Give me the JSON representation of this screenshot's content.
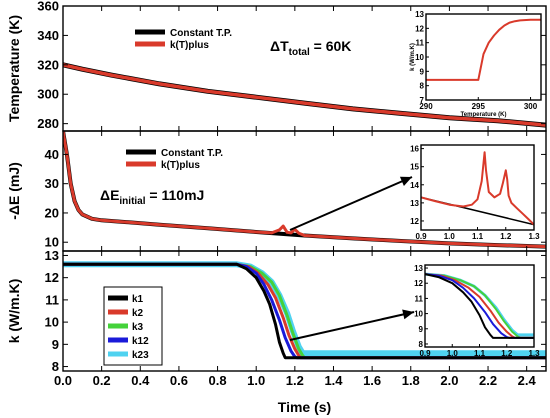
{
  "chart_data": [
    {
      "type": "line",
      "ylabel": "Temperature (K)",
      "xlim": [
        0,
        2.5
      ],
      "ylim": [
        275,
        360
      ],
      "yticks": [
        280,
        300,
        320,
        340,
        360
      ],
      "annotation": {
        "prefix": "ΔT",
        "subscript": "total",
        "suffix": " = 60K"
      },
      "legend": {
        "position": "top-left",
        "entries": [
          "Constant T.P.",
          "k(T)plus"
        ]
      },
      "series": [
        {
          "name": "Constant T.P.",
          "color": "#000000",
          "x": [
            0,
            0.1,
            0.25,
            0.5,
            0.75,
            1.0,
            1.25,
            1.5,
            1.75,
            2.0,
            2.25,
            2.5
          ],
          "y": [
            320,
            317,
            313,
            307,
            302,
            298,
            294,
            290,
            287,
            284,
            282,
            279
          ]
        },
        {
          "name": "k(T)plus",
          "color": "#d93a2b",
          "x": [
            0,
            0.1,
            0.25,
            0.5,
            0.75,
            1.0,
            1.25,
            1.5,
            1.75,
            2.0,
            2.25,
            2.5
          ],
          "y": [
            320,
            317,
            313,
            307,
            302,
            298,
            294,
            290,
            287,
            284,
            282,
            279
          ]
        }
      ],
      "inset": {
        "xlabel": "Temperature (K)",
        "ylabel": "k (W/m.K)",
        "xlim": [
          290,
          301
        ],
        "ylim": [
          7,
          13
        ],
        "xticks": [
          290,
          295,
          300
        ],
        "yticks": [
          7,
          8,
          9,
          10,
          11,
          12,
          13
        ],
        "series": [
          {
            "name": "k(T)plus",
            "color": "#d93a2b",
            "x": [
              290,
              294.9,
              295.0,
              295.5,
              296,
              296.5,
              297,
              297.5,
              298,
              298.5,
              299,
              300,
              301
            ],
            "y": [
              8.4,
              8.4,
              8.4,
              10.2,
              11.0,
              11.5,
              11.9,
              12.2,
              12.4,
              12.5,
              12.55,
              12.6,
              12.6
            ]
          }
        ]
      }
    },
    {
      "type": "line",
      "ylabel": "-ΔE (mJ)",
      "xlim": [
        0,
        2.5
      ],
      "ylim": [
        7,
        48
      ],
      "yticks": [
        10,
        20,
        30,
        40
      ],
      "annotation": {
        "prefix": "ΔE",
        "subscript": "initial",
        "suffix": " = 110mJ"
      },
      "legend": {
        "position": "top-center",
        "entries": [
          "Constant T.P.",
          "k(T)plus"
        ]
      },
      "series": [
        {
          "name": "Constant T.P.",
          "color": "#000000",
          "x": [
            0,
            0.02,
            0.04,
            0.06,
            0.08,
            0.1,
            0.15,
            0.2,
            0.3,
            0.5,
            0.75,
            1.0,
            1.25,
            1.5,
            1.75,
            2.0,
            2.25,
            2.5
          ],
          "y": [
            48,
            40,
            30,
            24,
            21,
            19.5,
            18,
            17.5,
            17,
            16,
            14.8,
            13.5,
            12.3,
            11.3,
            10.4,
            9.6,
            9.0,
            8.5
          ]
        },
        {
          "name": "k(T)plus",
          "color": "#d93a2b",
          "x": [
            0,
            0.02,
            0.04,
            0.06,
            0.08,
            0.1,
            0.15,
            0.2,
            0.3,
            0.5,
            0.75,
            1.0,
            1.08,
            1.12,
            1.14,
            1.16,
            1.18,
            1.2,
            1.22,
            1.25,
            1.5,
            1.75,
            2.0,
            2.25,
            2.5
          ],
          "y": [
            48,
            40,
            30,
            24,
            21,
            19.5,
            18,
            17.5,
            17,
            16,
            14.8,
            13.5,
            13.2,
            14.2,
            15.5,
            13.4,
            13.2,
            14.4,
            13.1,
            12.3,
            11.3,
            10.4,
            9.6,
            9.0,
            8.5
          ]
        }
      ],
      "inset": {
        "xlim": [
          0.9,
          1.3
        ],
        "ylim": [
          11.5,
          16.2
        ],
        "xticks": [
          0.9,
          1.0,
          1.1,
          1.2,
          1.3
        ],
        "yticks": [
          12,
          13,
          14,
          15,
          16
        ],
        "series": [
          {
            "name": "Constant T.P.",
            "color": "#000000",
            "x": [
              0.9,
              1.3
            ],
            "y": [
              13.3,
              11.8
            ]
          },
          {
            "name": "k(T)plus",
            "color": "#d93a2b",
            "x": [
              0.9,
              0.95,
              1.0,
              1.05,
              1.08,
              1.1,
              1.115,
              1.125,
              1.13,
              1.14,
              1.16,
              1.18,
              1.19,
              1.2,
              1.205,
              1.21,
              1.22,
              1.24,
              1.26,
              1.28,
              1.3
            ],
            "y": [
              13.3,
              13.1,
              12.9,
              12.8,
              12.9,
              13.2,
              14.2,
              15.8,
              14.8,
              13.6,
              13.3,
              13.5,
              14.1,
              14.8,
              14.3,
              13.4,
              13.0,
              12.7,
              12.4,
              12.1,
              11.8
            ]
          }
        ]
      }
    },
    {
      "type": "line",
      "xlabel": "Time (s)",
      "ylabel": "k (W/m.K)",
      "xlim": [
        0,
        2.5
      ],
      "ylim": [
        7.8,
        13.2
      ],
      "xticks": [
        0.0,
        0.2,
        0.4,
        0.6,
        0.8,
        1.0,
        1.2,
        1.4,
        1.6,
        1.8,
        2.0,
        2.2,
        2.4
      ],
      "yticks": [
        8,
        9,
        10,
        11,
        12,
        13
      ],
      "legend": {
        "position": "left",
        "entries": [
          "k1",
          "k2",
          "k3",
          "k12",
          "k23"
        ]
      },
      "series": [
        {
          "name": "k23",
          "color": "#4fd2f0",
          "x": [
            0,
            0.9,
            0.97,
            1.03,
            1.08,
            1.12,
            1.16,
            1.19,
            1.22,
            1.24,
            1.245,
            2.5
          ],
          "y": [
            12.6,
            12.6,
            12.5,
            12.2,
            11.8,
            11.2,
            10.4,
            9.6,
            8.9,
            8.6,
            8.6,
            8.6
          ]
        },
        {
          "name": "k3",
          "color": "#44d23a",
          "x": [
            0,
            0.9,
            0.97,
            1.03,
            1.08,
            1.12,
            1.16,
            1.19,
            1.22,
            1.24,
            1.25,
            2.5
          ],
          "y": [
            12.6,
            12.6,
            12.5,
            12.2,
            11.8,
            11.2,
            10.3,
            9.5,
            8.8,
            8.5,
            8.4,
            8.4
          ]
        },
        {
          "name": "k2",
          "color": "#d93a2b",
          "x": [
            0,
            0.9,
            0.96,
            1.01,
            1.06,
            1.1,
            1.14,
            1.17,
            1.2,
            1.22,
            1.23,
            2.5
          ],
          "y": [
            12.6,
            12.6,
            12.5,
            12.2,
            11.7,
            11.1,
            10.2,
            9.4,
            8.8,
            8.5,
            8.4,
            8.4
          ]
        },
        {
          "name": "k12",
          "color": "#1a1ad9",
          "x": [
            0,
            0.9,
            0.95,
            1.0,
            1.04,
            1.08,
            1.12,
            1.15,
            1.18,
            1.2,
            1.21,
            2.5
          ],
          "y": [
            12.6,
            12.6,
            12.5,
            12.2,
            11.7,
            11.0,
            10.1,
            9.3,
            8.7,
            8.45,
            8.4,
            8.4
          ]
        },
        {
          "name": "k1",
          "color": "#000000",
          "x": [
            0,
            0.9,
            0.95,
            1.0,
            1.04,
            1.07,
            1.1,
            1.12,
            1.14,
            1.15,
            1.16,
            1.2,
            2.5
          ],
          "y": [
            12.6,
            12.6,
            12.4,
            12.0,
            11.4,
            10.8,
            9.9,
            9.1,
            8.6,
            8.4,
            8.4,
            8.4,
            8.4
          ]
        }
      ],
      "inset": {
        "xlim": [
          0.9,
          1.3
        ],
        "ylim": [
          7.8,
          13.2
        ],
        "xticks": [
          0.9,
          1.0,
          1.1,
          1.2,
          1.3
        ],
        "yticks": [
          8,
          9,
          10,
          11,
          12,
          13
        ],
        "series": [
          {
            "name": "k23",
            "color": "#4fd2f0",
            "x": [
              0.9,
              0.97,
              1.03,
              1.08,
              1.12,
              1.16,
              1.19,
              1.22,
              1.24,
              1.245,
              1.3
            ],
            "y": [
              12.6,
              12.5,
              12.2,
              11.8,
              11.2,
              10.4,
              9.6,
              8.9,
              8.6,
              8.6,
              8.6
            ]
          },
          {
            "name": "k3",
            "color": "#44d23a",
            "x": [
              0.9,
              0.97,
              1.03,
              1.08,
              1.12,
              1.16,
              1.19,
              1.22,
              1.24,
              1.25,
              1.3
            ],
            "y": [
              12.6,
              12.5,
              12.2,
              11.8,
              11.2,
              10.3,
              9.5,
              8.8,
              8.5,
              8.4,
              8.4
            ]
          },
          {
            "name": "k2",
            "color": "#d93a2b",
            "x": [
              0.9,
              0.96,
              1.01,
              1.06,
              1.1,
              1.14,
              1.17,
              1.2,
              1.22,
              1.23,
              1.3
            ],
            "y": [
              12.6,
              12.5,
              12.2,
              11.7,
              11.1,
              10.2,
              9.4,
              8.8,
              8.5,
              8.4,
              8.4
            ]
          },
          {
            "name": "k12",
            "color": "#1a1ad9",
            "x": [
              0.9,
              0.95,
              1.0,
              1.04,
              1.08,
              1.12,
              1.15,
              1.18,
              1.2,
              1.21,
              1.3
            ],
            "y": [
              12.6,
              12.5,
              12.2,
              11.7,
              11.0,
              10.1,
              9.3,
              8.7,
              8.45,
              8.4,
              8.4
            ]
          },
          {
            "name": "k1",
            "color": "#000000",
            "x": [
              0.9,
              0.95,
              1.0,
              1.04,
              1.07,
              1.1,
              1.12,
              1.14,
              1.15,
              1.16,
              1.3
            ],
            "y": [
              12.6,
              12.4,
              12.0,
              11.4,
              10.8,
              9.9,
              9.1,
              8.6,
              8.4,
              8.4,
              8.4
            ]
          }
        ]
      }
    }
  ]
}
